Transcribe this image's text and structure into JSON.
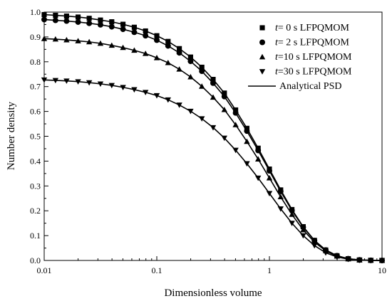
{
  "chart_data": {
    "type": "line",
    "title": "",
    "xlabel": "Dimensionless volume",
    "ylabel": "Number density",
    "xscale": "log",
    "xlim": [
      0.01,
      10
    ],
    "ylim": [
      0.0,
      1.0
    ],
    "xticks": [
      {
        "value": 0.01,
        "label": "0.01"
      },
      {
        "value": 0.1,
        "label": "0.1"
      },
      {
        "value": 1,
        "label": "1"
      },
      {
        "value": 10,
        "label": "10"
      }
    ],
    "yticks": [
      {
        "value": 0.0,
        "label": "0.0"
      },
      {
        "value": 0.1,
        "label": "0.1"
      },
      {
        "value": 0.2,
        "label": "0.2"
      },
      {
        "value": 0.3,
        "label": "0.3"
      },
      {
        "value": 0.4,
        "label": "0.4"
      },
      {
        "value": 0.5,
        "label": "0.5"
      },
      {
        "value": 0.6,
        "label": "0.6"
      },
      {
        "value": 0.7,
        "label": "0.7"
      },
      {
        "value": 0.8,
        "label": "0.8"
      },
      {
        "value": 0.9,
        "label": "0.9"
      },
      {
        "value": 1.0,
        "label": "1.0"
      }
    ],
    "grid": false,
    "legend_position": "top-right",
    "series": [
      {
        "name_italic": "t",
        "name_rest": "= 0  s LFPQMOM",
        "marker": "square",
        "color": "#000000",
        "x": [
          0.01,
          0.0126,
          0.0158,
          0.02,
          0.0251,
          0.0316,
          0.0398,
          0.0501,
          0.0631,
          0.0794,
          0.1,
          0.1259,
          0.1585,
          0.1995,
          0.2512,
          0.3162,
          0.3981,
          0.5012,
          0.631,
          0.7943,
          1.0,
          1.2589,
          1.5849,
          1.9953,
          2.5119,
          3.1623,
          3.9811,
          5.0119,
          6.3096,
          7.9433,
          10.0
        ],
        "y": [
          0.99,
          0.987,
          0.984,
          0.98,
          0.975,
          0.968,
          0.961,
          0.951,
          0.939,
          0.924,
          0.905,
          0.882,
          0.853,
          0.819,
          0.778,
          0.729,
          0.674,
          0.606,
          0.532,
          0.452,
          0.368,
          0.284,
          0.205,
          0.136,
          0.081,
          0.042,
          0.019,
          0.007,
          0.002,
          0.0005,
          0.0
        ]
      },
      {
        "name_italic": "t",
        "name_rest": "= 2  s LFPQMOM",
        "marker": "circle",
        "color": "#000000",
        "x": [
          0.01,
          0.0126,
          0.0158,
          0.02,
          0.0251,
          0.0316,
          0.0398,
          0.0501,
          0.0631,
          0.0794,
          0.1,
          0.1259,
          0.1585,
          0.1995,
          0.2512,
          0.3162,
          0.3981,
          0.5012,
          0.631,
          0.7943,
          1.0,
          1.2589,
          1.5849,
          1.9953,
          2.5119,
          3.1623,
          3.9811,
          5.0119,
          6.3096,
          7.9433,
          10.0
        ],
        "y": [
          0.97,
          0.967,
          0.964,
          0.96,
          0.955,
          0.949,
          0.941,
          0.931,
          0.919,
          0.905,
          0.887,
          0.864,
          0.836,
          0.802,
          0.762,
          0.714,
          0.66,
          0.594,
          0.521,
          0.443,
          0.361,
          0.278,
          0.201,
          0.134,
          0.08,
          0.042,
          0.019,
          0.007,
          0.002,
          0.0005,
          0.0
        ]
      },
      {
        "name_italic": "t",
        "name_rest": "=10 s LFPQMOM",
        "marker": "triangle-up",
        "color": "#000000",
        "x": [
          0.01,
          0.0126,
          0.0158,
          0.02,
          0.0251,
          0.0316,
          0.0398,
          0.0501,
          0.0631,
          0.0794,
          0.1,
          0.1259,
          0.1585,
          0.1995,
          0.2512,
          0.3162,
          0.3981,
          0.5012,
          0.631,
          0.7943,
          1.0,
          1.2589,
          1.5849,
          1.9953,
          2.5119,
          3.1623,
          3.9811,
          5.0119,
          6.3096,
          7.9433,
          10.0
        ],
        "y": [
          0.893,
          0.891,
          0.888,
          0.884,
          0.88,
          0.874,
          0.866,
          0.857,
          0.846,
          0.833,
          0.816,
          0.796,
          0.77,
          0.739,
          0.701,
          0.657,
          0.607,
          0.546,
          0.479,
          0.408,
          0.332,
          0.256,
          0.185,
          0.123,
          0.074,
          0.039,
          0.017,
          0.006,
          0.002,
          0.0005,
          0.0
        ]
      },
      {
        "name_italic": "t",
        "name_rest": "=30 s LFPQMOM",
        "marker": "triangle-down",
        "color": "#000000",
        "x": [
          0.01,
          0.0126,
          0.0158,
          0.02,
          0.0251,
          0.0316,
          0.0398,
          0.0501,
          0.0631,
          0.0794,
          0.1,
          0.1259,
          0.1585,
          0.1995,
          0.2512,
          0.3162,
          0.3981,
          0.5012,
          0.631,
          0.7943,
          1.0,
          1.2589,
          1.5849,
          1.9953,
          2.5119,
          3.1623,
          3.9811,
          5.0119,
          6.3096,
          7.9433,
          10.0
        ],
        "y": [
          0.727,
          0.725,
          0.723,
          0.72,
          0.716,
          0.711,
          0.705,
          0.697,
          0.688,
          0.677,
          0.664,
          0.647,
          0.626,
          0.601,
          0.571,
          0.535,
          0.493,
          0.444,
          0.39,
          0.332,
          0.27,
          0.208,
          0.15,
          0.1,
          0.06,
          0.031,
          0.014,
          0.005,
          0.001,
          0.0004,
          0.0
        ]
      }
    ],
    "analytical_legend": "Analytical PSD"
  }
}
